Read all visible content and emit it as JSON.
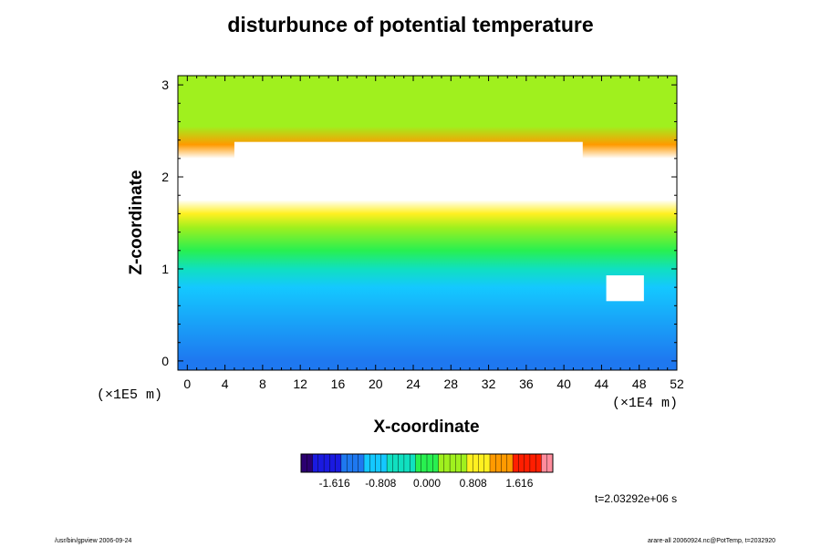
{
  "chart_data": {
    "type": "heatmap",
    "title": "disturbunce of potential temperature",
    "xlabel": "X-coordinate",
    "ylabel": "Z-coordinate",
    "x_scale_label": "(×1E4 m)",
    "y_scale_label": "(×1E5 m)",
    "xlim": [
      -1,
      52
    ],
    "ylim": [
      -0.1,
      3.1
    ],
    "x_ticks": [
      0,
      4,
      8,
      12,
      16,
      20,
      24,
      28,
      32,
      36,
      40,
      44,
      48,
      52
    ],
    "y_ticks": [
      0,
      1,
      2,
      3
    ],
    "colorbar": {
      "ticks": [
        "-1.616",
        "-0.808",
        "0.000",
        "0.808",
        "1.616"
      ],
      "range": [
        -2.2,
        2.2
      ]
    },
    "field_profile": [
      {
        "z": 0.0,
        "value": -1.2
      },
      {
        "z": 0.8,
        "value": -1.0
      },
      {
        "z": 1.0,
        "value": -0.3
      },
      {
        "z": 1.2,
        "value": 0.1
      },
      {
        "z": 1.45,
        "value": 0.45
      },
      {
        "z": 1.6,
        "value": 1.0
      },
      {
        "z": 1.75,
        "value": 2.6
      },
      {
        "z": 2.2,
        "value": 2.6
      },
      {
        "z": 2.35,
        "value": 1.2
      },
      {
        "z": 2.55,
        "value": 0.5
      },
      {
        "z": 3.0,
        "value": 0.55
      }
    ],
    "saturated_regions": [
      {
        "x": [
          0,
          52
        ],
        "z": [
          1.75,
          2.2
        ]
      },
      {
        "x": [
          5,
          42
        ],
        "z": [
          2.2,
          2.38
        ]
      },
      {
        "x": [
          44.5,
          48.5
        ],
        "z": [
          0.65,
          0.93
        ]
      }
    ]
  },
  "annotations": {
    "time": "t=2.03292e+06 s",
    "footer_left": "/usr/bin/gpview 2006-09-24",
    "footer_right": "arare-all 20060924.nc@PotTemp, t=2032920"
  },
  "colors": {
    "colormap": [
      "#2b0070",
      "#1a1ae0",
      "#1e78f0",
      "#14c8ff",
      "#10e0c0",
      "#28f050",
      "#a0f01e",
      "#fff020",
      "#ff9a00",
      "#ff1e00",
      "#ff8c9c"
    ]
  }
}
